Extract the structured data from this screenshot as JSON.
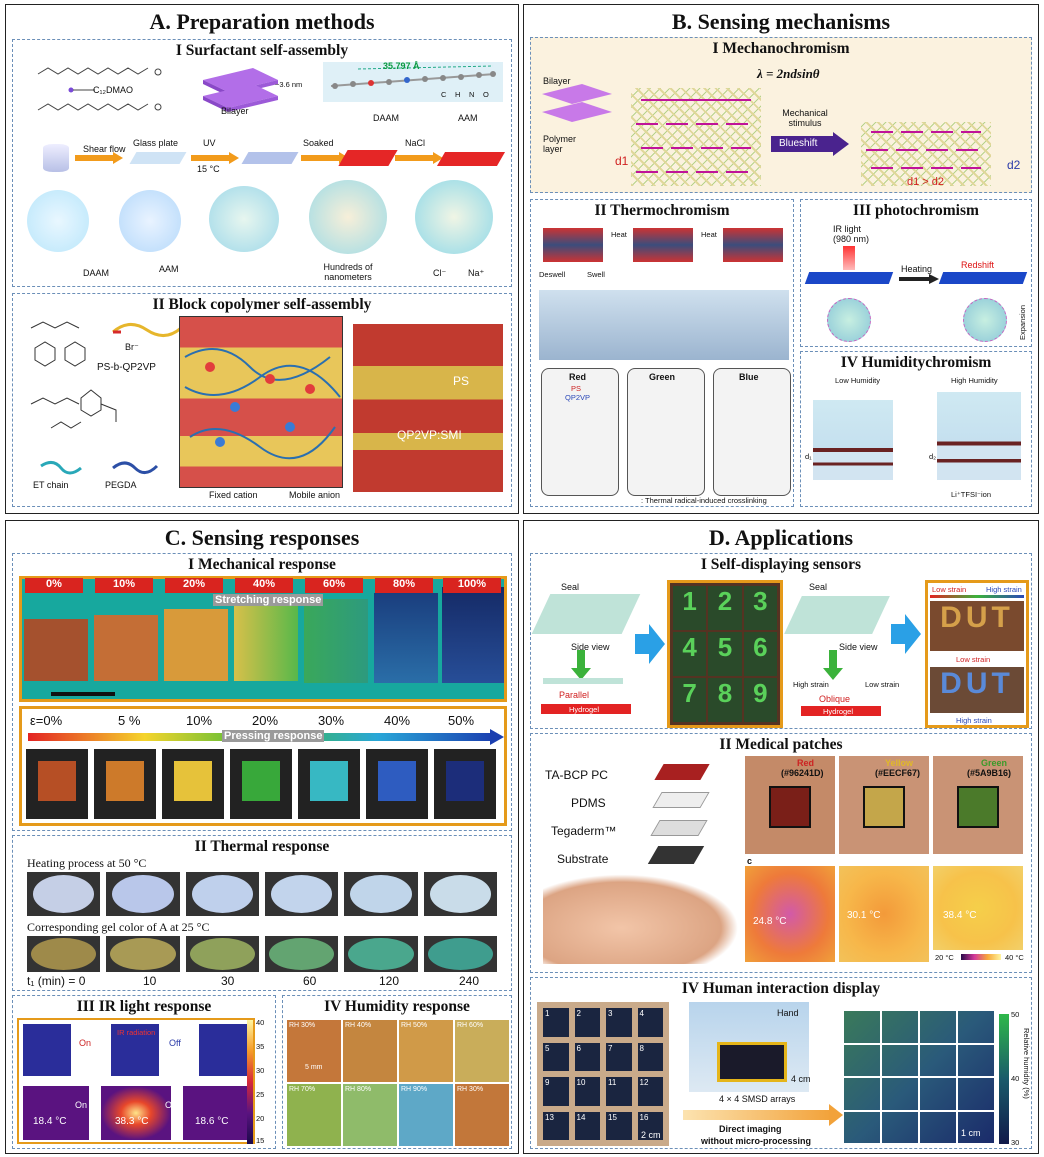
{
  "panelA": {
    "title": "A. Preparation methods",
    "s1": {
      "title": "I Surfactant self-assembly",
      "c12dmao": "C₁₂DMAO",
      "bilayer": "Bilayer",
      "thick": "~3.6 nm",
      "length": "35.797 Å",
      "daam": "DAAM",
      "aam": "AAM",
      "legend_c": "C",
      "legend_h": "H",
      "legend_n": "N",
      "legend_o": "O",
      "steps": [
        "Shear flow",
        "Glass plate",
        "UV",
        "15 °C",
        "Soaked",
        "NaCl"
      ],
      "daam2": "DAAM",
      "aam2": "AAM",
      "hundreds": "Hundreds of nanometers",
      "cl": "Cl⁻",
      "na": "Na⁺"
    },
    "s2": {
      "title": "II Block copolymer self-assembly",
      "ps_qp2vp": "PS-b-QP2VP",
      "br": "Br⁻",
      "et_chain": "ET chain",
      "pegda": "PEGDA",
      "fixed_cation": "Fixed cation",
      "mobile_anion": "Mobile anion",
      "ps": "PS",
      "qp2vp_smi": "QP2VP:SMI"
    }
  },
  "panelB": {
    "title": "B. Sensing mechanisms",
    "s1": {
      "title": "I Mechanochromism",
      "equation": "λ = 2ndsinθ",
      "bilayer": "Bilayer",
      "polymer_layer": "Polymer layer",
      "mech_stim": "Mechanical stimulus",
      "blueshift": "Blueshift",
      "d1": "d1",
      "d2": "d2",
      "relation": "d1 > d2"
    },
    "s2": {
      "title": "II Thermochromism",
      "heat1": "Heat",
      "heat2": "Heat",
      "deswell": "Deswell",
      "swell": "Swell",
      "red": "Red",
      "green": "Green",
      "blue": "Blue",
      "ps": "PS",
      "qp2vp": "QP2VP",
      "footnote": ": Thermal radical-induced crosslinking"
    },
    "s3": {
      "title": "III photochromism",
      "ir": "IR light",
      "nm": "(980 nm)",
      "heating": "Heating",
      "redshift": "Redshift",
      "expansion": "Expansion"
    },
    "s4": {
      "title": "IV Humiditychromism",
      "low": "Low Humidity",
      "high": "High Humidity",
      "ion": "Li⁺TFSI⁻ion",
      "d1": "d₁",
      "d2": "d₂"
    }
  },
  "panelC": {
    "title": "C. Sensing responses",
    "s1": {
      "title": "I Mechanical response",
      "strains": [
        "0%",
        "10%",
        "20%",
        "40%",
        "60%",
        "80%",
        "100%"
      ],
      "stretching": "Stretching response",
      "epsilon": [
        "ε=0%",
        "5 %",
        "10%",
        "20%",
        "30%",
        "40%",
        "50%"
      ],
      "pressing": "Pressing response"
    },
    "s2": {
      "title": "II Thermal response",
      "heating": "Heating process at 50 °C",
      "corresponding": "Corresponding gel color of A at 25 °C",
      "t_label": "t₁ (min) = 0",
      "times": [
        "10",
        "30",
        "60",
        "120",
        "240"
      ]
    },
    "s3": {
      "title": "III IR light response",
      "on": "On",
      "off": "Off",
      "ir_rad": "IR radiation",
      "temps": [
        "18.4 °C",
        "38.3 °C",
        "18.6 °C"
      ],
      "scale": [
        "40",
        "35",
        "30",
        "25",
        "20",
        "15"
      ]
    },
    "s4": {
      "title": "IV Humidity response",
      "rh": [
        "RH 30%",
        "RH 40%",
        "RH 50%",
        "RH 60%",
        "RH 70%",
        "RH 80%",
        "RH 90%",
        "RH 30%"
      ],
      "scale": "5 mm"
    }
  },
  "panelD": {
    "title": "D. Applications",
    "s1": {
      "title": "I Self-displaying sensors",
      "seal1": "Seal",
      "seal2": "Seal",
      "side1": "Side view",
      "side2": "Side view",
      "parallel": "Parallel",
      "oblique": "Oblique",
      "hydrogel1": "Hydrogel",
      "hydrogel2": "Hydrogel",
      "high_strain": "High strain",
      "low_strain": "Low strain",
      "digits": [
        "1",
        "2",
        "3",
        "4",
        "5",
        "6",
        "7",
        "8",
        "9"
      ],
      "low_strain_r": "Low strain",
      "high_strain_r": "High strain",
      "dut": "DUT",
      "low_strain_m": "Low strain",
      "high_strain_b": "High strain"
    },
    "s2": {
      "title": "II Medical patches",
      "layers": [
        "TA-BCP PC",
        "PDMS",
        "Tegaderm™",
        "Substrate"
      ],
      "colors": [
        "Red",
        "Yellow",
        "Green"
      ],
      "hex": [
        "(#96241D)",
        "(#EECF67)",
        "(#5A9B16)"
      ],
      "c": "c",
      "temps": [
        "24.8 °C",
        "30.1 °C",
        "38.4 °C"
      ],
      "scale_lo": "20 °C",
      "scale_hi": "40 °C"
    },
    "s3": {
      "title": "IV Human interaction display",
      "cells": [
        "1",
        "2",
        "3",
        "4",
        "5",
        "6",
        "7",
        "8",
        "9",
        "10",
        "11",
        "12",
        "13",
        "14",
        "15",
        "16"
      ],
      "hand": "Hand",
      "cm4": "4 cm",
      "arrays": "4 × 4 SMSD arrays",
      "direct": "Direct imaging",
      "without": "without micro-processing",
      "cm2": "2 cm",
      "cm1": "1 cm",
      "rh_label": "Relative humidity (%)",
      "rh_ticks": [
        "50",
        "40",
        "30"
      ]
    }
  }
}
